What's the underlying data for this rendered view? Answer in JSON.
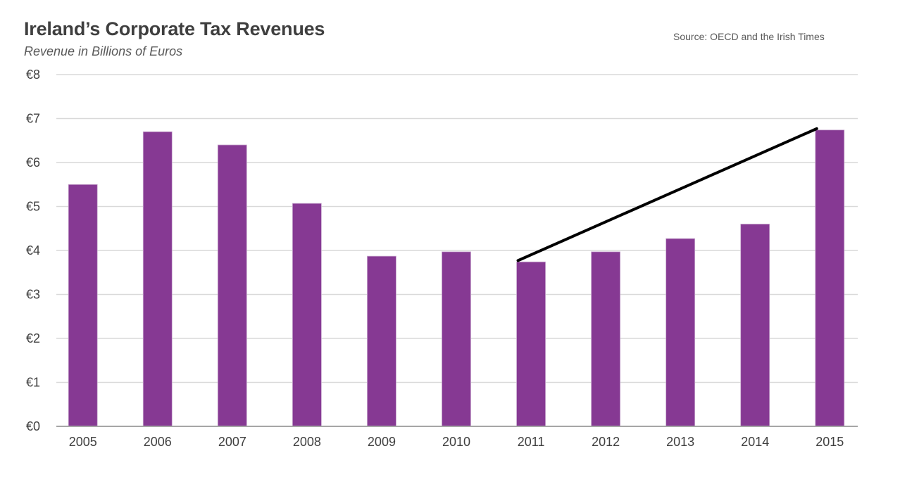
{
  "header": {
    "title": "Ireland’s Corporate Tax Revenues",
    "subtitle": "Revenue in Billions of Euros",
    "source": "Source:  OECD and the Irish Times"
  },
  "colors": {
    "bar": "#863993",
    "grid": "#d9d9d9",
    "axis": "#a6a6a6",
    "trend_line": "#000000"
  },
  "chart_data": {
    "type": "bar",
    "title": "Ireland’s Corporate Tax Revenues",
    "subtitle": "Revenue in Billions of Euros",
    "xlabel": "",
    "ylabel": "Revenue in Billions of Euros",
    "categories": [
      "2005",
      "2006",
      "2007",
      "2008",
      "2009",
      "2010",
      "2011",
      "2012",
      "2013",
      "2014",
      "2015"
    ],
    "values": [
      5.5,
      6.7,
      6.4,
      5.07,
      3.87,
      3.97,
      3.74,
      3.97,
      4.27,
      4.6,
      6.74
    ],
    "ylim": [
      0,
      8
    ],
    "yticks": [
      0,
      1,
      2,
      3,
      4,
      5,
      6,
      7,
      8
    ],
    "ytick_labels": [
      "€0",
      "€1",
      "€2",
      "€3",
      "€4",
      "€5",
      "€6",
      "€7",
      "€8"
    ],
    "grid": true,
    "legend": "none",
    "annotations": [
      {
        "type": "trend-line",
        "from": {
          "x": "2011",
          "y": 3.77
        },
        "to": {
          "x": "2015",
          "y": 6.77
        }
      }
    ],
    "source": "Source:  OECD and the Irish Times"
  }
}
